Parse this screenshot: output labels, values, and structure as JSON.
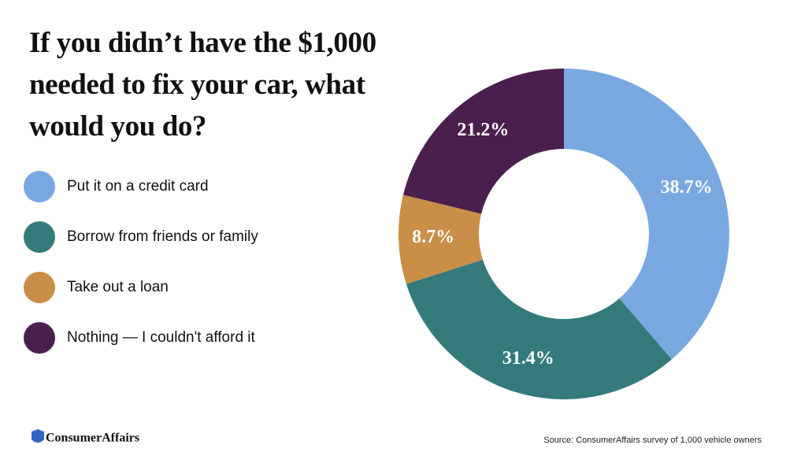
{
  "chart_data": {
    "type": "donut",
    "title": "If you didn’t have the $1,000 needed to fix your car, what would you do?",
    "categories": [
      "Put it on a credit card",
      "Borrow from friends or family",
      "Take out a loan",
      "Nothing — I couldn't afford it"
    ],
    "values": [
      38.7,
      31.4,
      8.7,
      21.2
    ],
    "value_labels": [
      "38.7%",
      "31.4%",
      "8.7%",
      "21.2%"
    ],
    "colors": [
      "#79a8e1",
      "#347a7a",
      "#c98e47",
      "#4a1f4e"
    ],
    "source": "Source: ConsumerAffairs survey of 1,000 vehicle owners",
    "brand": "ConsumerAffairs"
  }
}
